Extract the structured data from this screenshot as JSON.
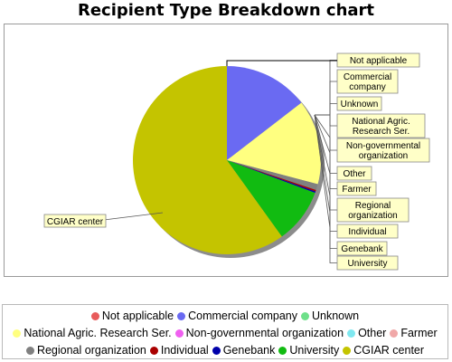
{
  "chart_data": {
    "type": "pie",
    "title": "Recipient Type Breakdown chart",
    "slices": [
      {
        "label": "Not applicable",
        "value": 0,
        "color": "#e85b5b"
      },
      {
        "label": "Commercial company",
        "value": 17,
        "color": "#6a6af2"
      },
      {
        "label": "Unknown",
        "value": 0,
        "color": "#6ee08a"
      },
      {
        "label": "National Agric. Research Ser.",
        "value": 17,
        "color": "#ffff80"
      },
      {
        "label": "Non-governmental organization",
        "value": 0,
        "color": "#f060f0"
      },
      {
        "label": "Other",
        "value": 0,
        "color": "#7fe8f0"
      },
      {
        "label": "Farmer",
        "value": 0,
        "color": "#f0a8a8"
      },
      {
        "label": "Regional organization",
        "value": 1.2,
        "color": "#808080"
      },
      {
        "label": "Individual",
        "value": 0.3,
        "color": "#aa0000"
      },
      {
        "label": "Genebank",
        "value": 0.3,
        "color": "#0000aa"
      },
      {
        "label": "University",
        "value": 11,
        "color": "#11bb11"
      },
      {
        "label": "CGIAR center",
        "value": 70,
        "color": "#c4c400"
      }
    ],
    "callouts": [
      "Not applicable",
      "Commercial\ncompany",
      "Unknown",
      "National Agric.\nResearch Ser.",
      "Non-governmental\norganization",
      "Other",
      "Farmer",
      "Regional\norganization",
      "Individual",
      "Genebank",
      "University"
    ],
    "left_callout": "CGIAR center",
    "legend_placement": "bottom"
  }
}
